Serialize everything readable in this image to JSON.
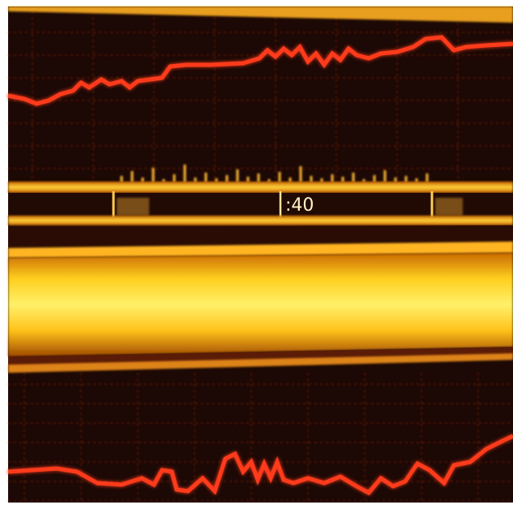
{
  "labels": {
    "center": ":40"
  }
}
